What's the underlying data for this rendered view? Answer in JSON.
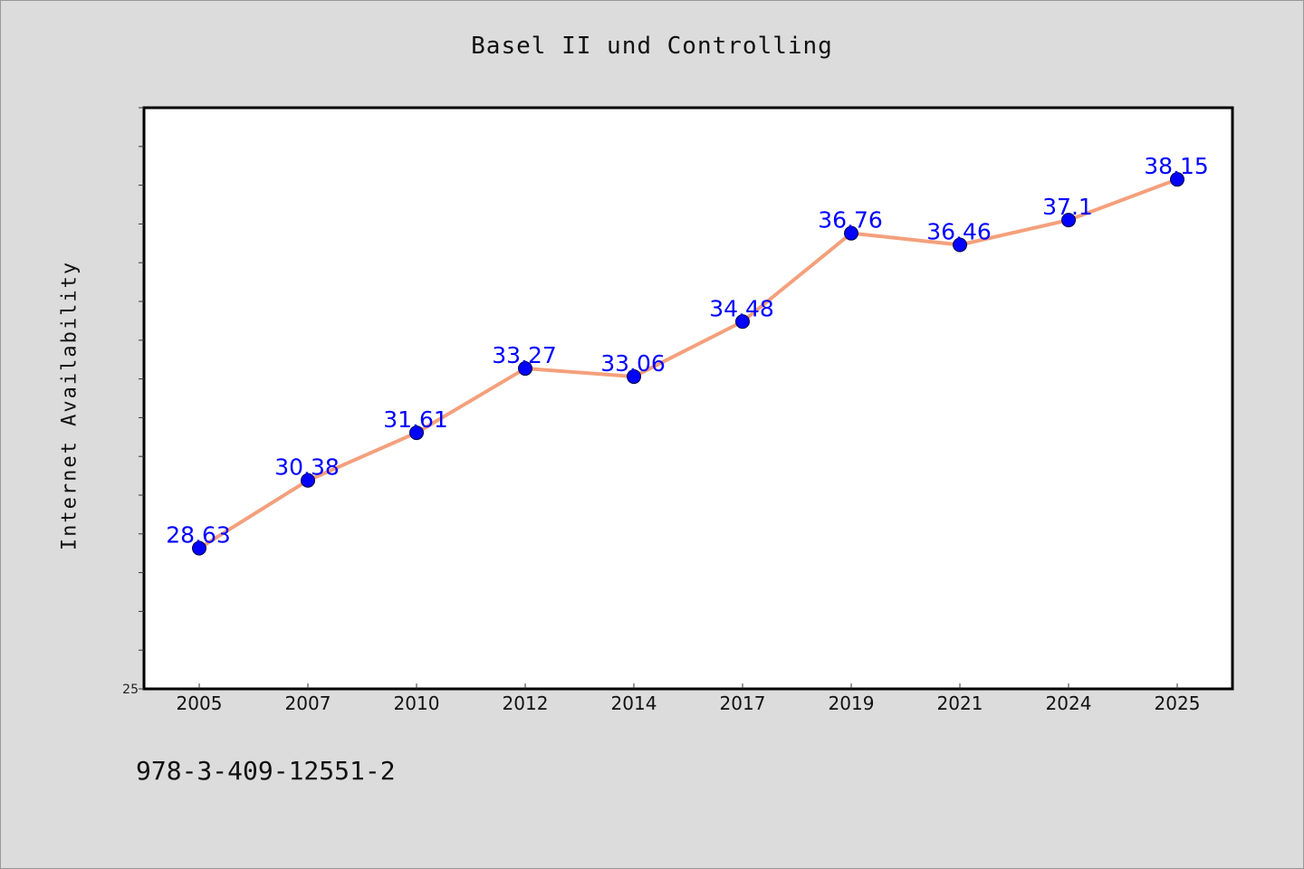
{
  "chart_data": {
    "type": "line",
    "title": "Basel II und Controlling",
    "xlabel": "",
    "ylabel": "Internet Availability",
    "categories": [
      "2005",
      "2007",
      "2010",
      "2012",
      "2014",
      "2017",
      "2019",
      "2021",
      "2024",
      "2025"
    ],
    "series": [
      {
        "values": [
          28.63,
          30.38,
          31.61,
          33.27,
          33.06,
          34.48,
          36.76,
          36.46,
          37.1,
          38.15
        ],
        "data_labels": [
          "28.63",
          "30.38",
          "31.61",
          "33.27",
          "33.06",
          "34.48",
          "36.76",
          "36.46",
          "37.1",
          "38.15"
        ]
      }
    ],
    "ylim": [
      25,
      40
    ],
    "y_tick_labels": [
      "25"
    ],
    "grid": false,
    "legend": "none",
    "colors": {
      "line": "#f4a07c",
      "marker": "#0000ff",
      "label": "#0000ff",
      "plot_bg": "#ffffff",
      "page_bg": "#dcdcdc"
    }
  },
  "footer": {
    "isbn": "978-3-409-12551-2"
  }
}
